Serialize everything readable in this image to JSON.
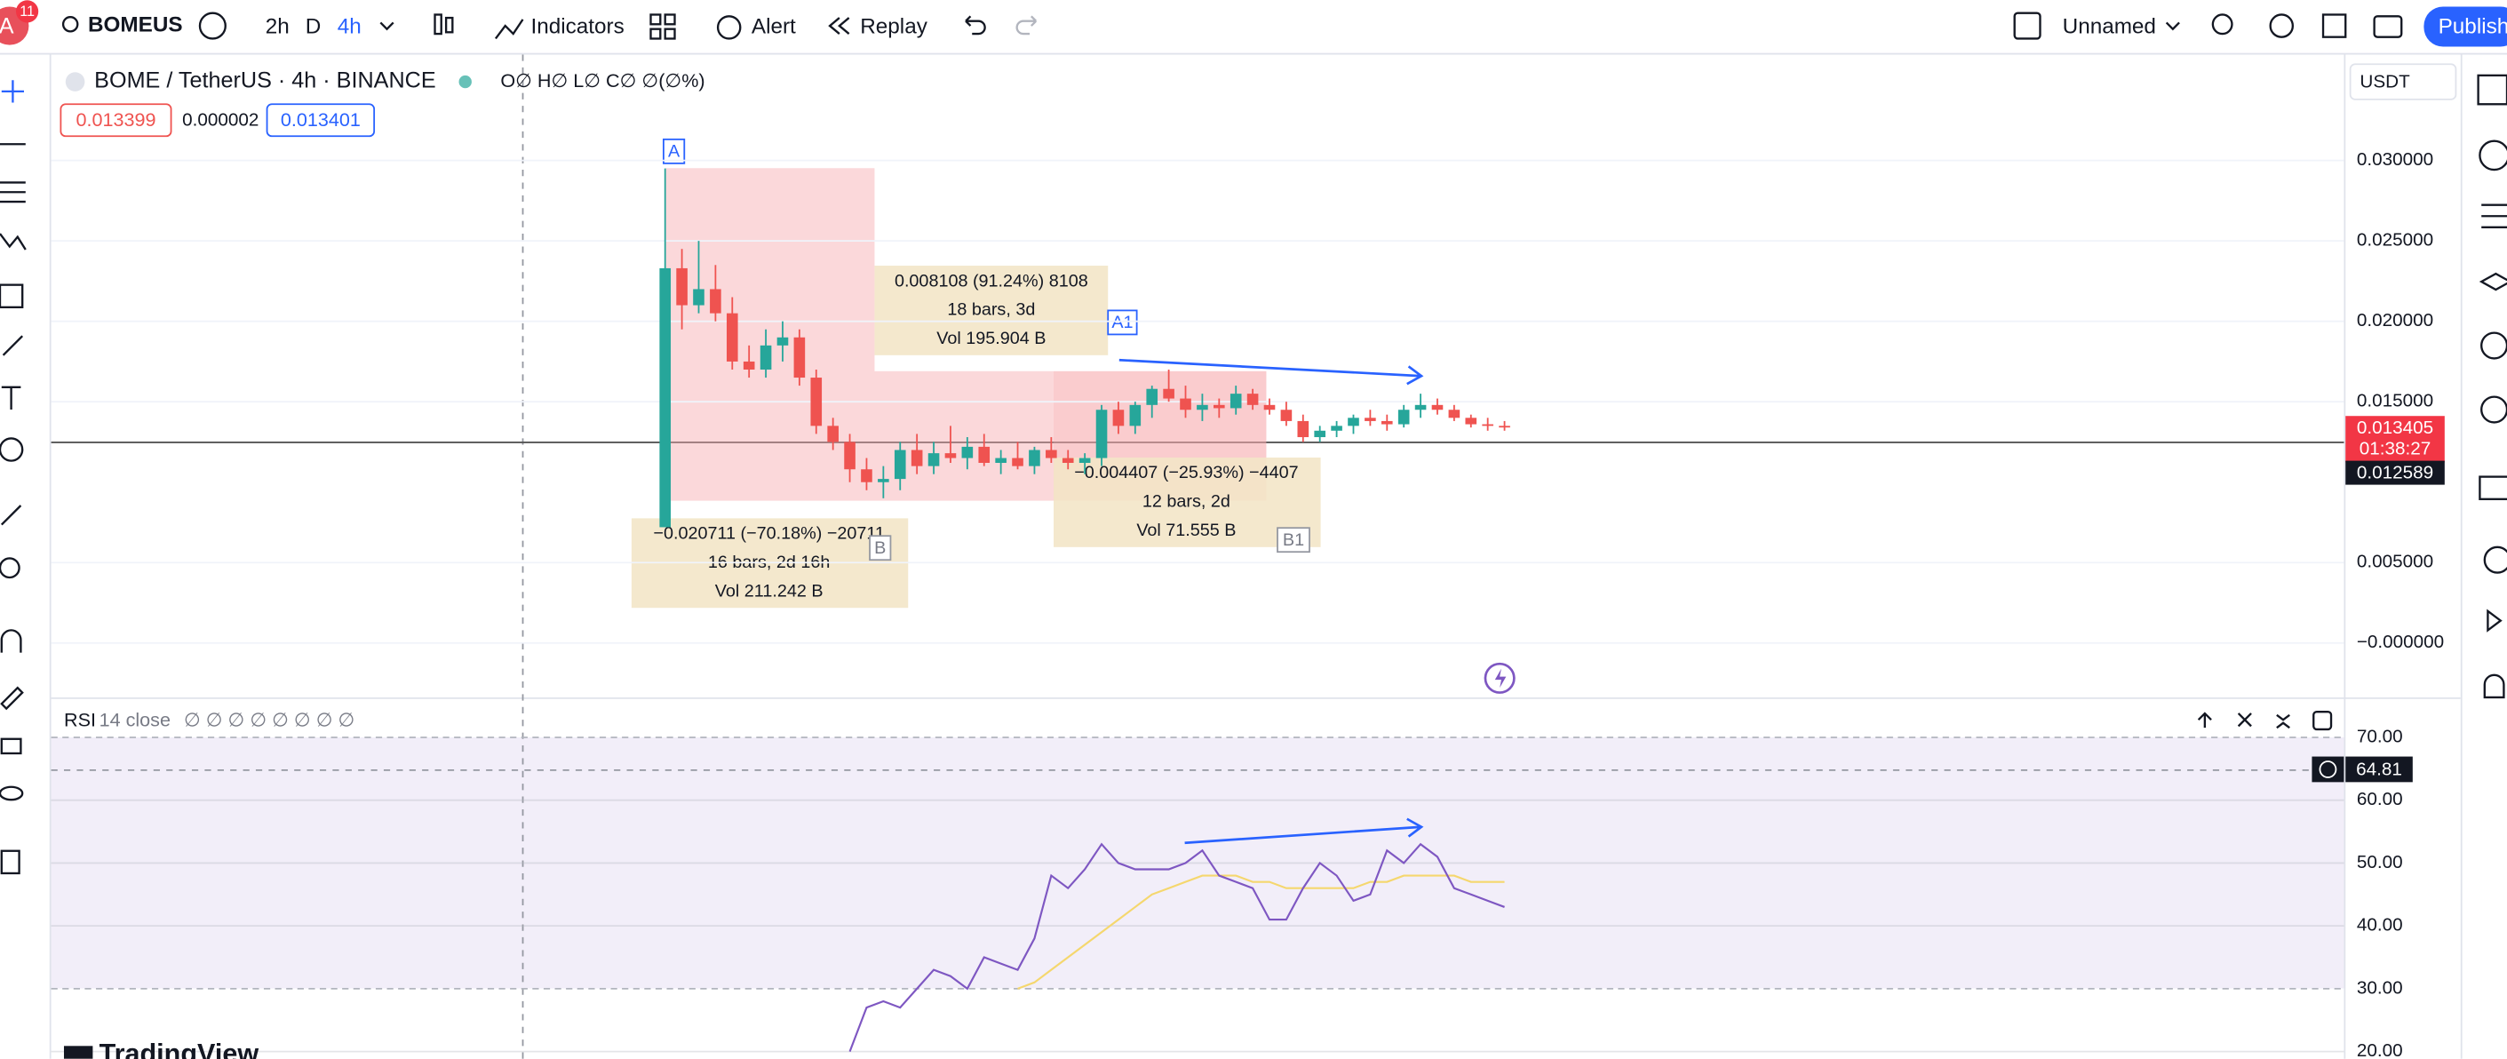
{
  "toolbar": {
    "avatar": "A",
    "badge": "11",
    "symbol": "BOMEUS",
    "intervals": [
      "2h",
      "D",
      "4h"
    ],
    "indicators": "Indicators",
    "alert": "Alert",
    "replay": "Replay",
    "layout": "Unnamed",
    "publish": "Publish"
  },
  "legend": {
    "title": "BOME / TetherUS · 4h · BINANCE",
    "ohlc": "O∅ H∅ L∅ C∅ ∅(∅%)",
    "bid": "0.013399",
    "spread": "0.000002",
    "ask": "0.013401",
    "currency": "USDT"
  },
  "chart": {
    "type": "candlestick",
    "yticks": [
      {
        "value": 0.03,
        "label": "0.030000"
      },
      {
        "value": 0.025,
        "label": "0.025000"
      },
      {
        "value": 0.02,
        "label": "0.020000"
      },
      {
        "value": 0.015,
        "label": "0.015000"
      },
      {
        "value": 0.005,
        "label": "0.005000"
      },
      {
        "value": 0,
        "label": "−0.000000"
      }
    ],
    "up_color": "#26a69a",
    "down_color": "#ef5350",
    "candles": [
      [
        0.0072,
        0.0295,
        0.0072,
        0.0233
      ],
      [
        0.0233,
        0.0245,
        0.0195,
        0.021
      ],
      [
        0.021,
        0.025,
        0.0205,
        0.022
      ],
      [
        0.022,
        0.0235,
        0.02,
        0.0205
      ],
      [
        0.0205,
        0.0215,
        0.017,
        0.0175
      ],
      [
        0.0175,
        0.0185,
        0.0165,
        0.017
      ],
      [
        0.017,
        0.0195,
        0.0165,
        0.0185
      ],
      [
        0.0185,
        0.02,
        0.0175,
        0.019
      ],
      [
        0.019,
        0.0195,
        0.016,
        0.0165
      ],
      [
        0.0165,
        0.017,
        0.013,
        0.0135
      ],
      [
        0.0135,
        0.014,
        0.012,
        0.0125
      ],
      [
        0.0125,
        0.013,
        0.01,
        0.0108
      ],
      [
        0.0108,
        0.0115,
        0.0095,
        0.01
      ],
      [
        0.01,
        0.011,
        0.009,
        0.0102
      ],
      [
        0.0102,
        0.0125,
        0.0095,
        0.012
      ],
      [
        0.012,
        0.013,
        0.0105,
        0.011
      ],
      [
        0.011,
        0.0125,
        0.0105,
        0.0118
      ],
      [
        0.0118,
        0.0135,
        0.0112,
        0.0115
      ],
      [
        0.0115,
        0.0128,
        0.0108,
        0.0122
      ],
      [
        0.0122,
        0.013,
        0.011,
        0.0112
      ],
      [
        0.0112,
        0.012,
        0.0105,
        0.0115
      ],
      [
        0.0115,
        0.0125,
        0.0108,
        0.011
      ],
      [
        0.011,
        0.0122,
        0.0105,
        0.012
      ],
      [
        0.012,
        0.0128,
        0.0112,
        0.0115
      ],
      [
        0.0115,
        0.012,
        0.0108,
        0.0112
      ],
      [
        0.0112,
        0.0118,
        0.0105,
        0.0115
      ],
      [
        0.0115,
        0.0148,
        0.011,
        0.0145
      ],
      [
        0.0145,
        0.015,
        0.013,
        0.0135
      ],
      [
        0.0135,
        0.015,
        0.013,
        0.0148
      ],
      [
        0.0148,
        0.016,
        0.014,
        0.0158
      ],
      [
        0.0158,
        0.017,
        0.015,
        0.0152
      ],
      [
        0.0152,
        0.016,
        0.014,
        0.0145
      ],
      [
        0.0145,
        0.0155,
        0.0138,
        0.0148
      ],
      [
        0.0148,
        0.0152,
        0.014,
        0.0146
      ],
      [
        0.0146,
        0.016,
        0.0142,
        0.0155
      ],
      [
        0.0155,
        0.0158,
        0.0145,
        0.0148
      ],
      [
        0.0148,
        0.0152,
        0.0142,
        0.0145
      ],
      [
        0.0145,
        0.015,
        0.0135,
        0.0138
      ],
      [
        0.0138,
        0.0142,
        0.0125,
        0.0128
      ],
      [
        0.0128,
        0.0135,
        0.0125,
        0.0132
      ],
      [
        0.0132,
        0.0138,
        0.0128,
        0.0135
      ],
      [
        0.0135,
        0.0142,
        0.013,
        0.014
      ],
      [
        0.014,
        0.0145,
        0.0135,
        0.0138
      ],
      [
        0.0138,
        0.0142,
        0.0132,
        0.0136
      ],
      [
        0.0136,
        0.0148,
        0.0134,
        0.0145
      ],
      [
        0.0145,
        0.0155,
        0.014,
        0.0148
      ],
      [
        0.0148,
        0.0152,
        0.0142,
        0.0145
      ],
      [
        0.0145,
        0.0148,
        0.0138,
        0.014
      ],
      [
        0.014,
        0.0142,
        0.0134,
        0.0136
      ],
      [
        0.0136,
        0.014,
        0.0132,
        0.0135
      ],
      [
        0.0135,
        0.0138,
        0.0132,
        0.0134
      ]
    ],
    "last_price": "0.013405",
    "countdown": "01:38:27",
    "crosshair_price": "0.012589"
  },
  "measures": [
    {
      "point": "A",
      "label": "B",
      "lines": [
        "−0.020711 (−70.18%) −20711",
        "16 bars, 2d 16h",
        "Vol 211.242 B"
      ]
    },
    {
      "point": "A1",
      "label": "B1",
      "lines": [
        "0.008108 (91.24%) 8108",
        "18 bars, 3d",
        "Vol 195.904 B"
      ]
    },
    {
      "lines": [
        "−0.004407 (−25.93%) −4407",
        "12 bars, 2d",
        "Vol 71.555 B"
      ]
    }
  ],
  "rsi": {
    "name": "RSI",
    "params": "14 close",
    "values_text": "∅ ∅ ∅ ∅ ∅ ∅ ∅ ∅",
    "current": "64.81",
    "line_color": "#7e57c2",
    "ma_color": "#f5d76e",
    "yticks": [
      {
        "value": 70,
        "label": "70.00"
      },
      {
        "value": 60,
        "label": "60.00"
      },
      {
        "value": 50,
        "label": "50.00"
      },
      {
        "value": 40,
        "label": "40.00"
      },
      {
        "value": 30,
        "label": "30.00"
      },
      {
        "value": 20,
        "label": "20.00"
      }
    ],
    "values": [
      null,
      null,
      null,
      null,
      null,
      null,
      null,
      null,
      null,
      null,
      null,
      20,
      27,
      28,
      27,
      30,
      33,
      32,
      30,
      35,
      34,
      33,
      38,
      48,
      46,
      49,
      53,
      50,
      49,
      49,
      49,
      50,
      52,
      48,
      47,
      46,
      41,
      41,
      46,
      50,
      48,
      44,
      45,
      52,
      50,
      53,
      51,
      46,
      45,
      44,
      43
    ],
    "ma": [
      null,
      null,
      null,
      null,
      null,
      null,
      null,
      null,
      null,
      null,
      null,
      null,
      null,
      null,
      null,
      null,
      null,
      null,
      null,
      null,
      null,
      30,
      31,
      33,
      35,
      37,
      39,
      41,
      43,
      45,
      46,
      47,
      48,
      48,
      48,
      47,
      47,
      46,
      46,
      46,
      46,
      46,
      47,
      47,
      48,
      48,
      48,
      48,
      47,
      47,
      47
    ]
  },
  "watermark": "TradingView"
}
